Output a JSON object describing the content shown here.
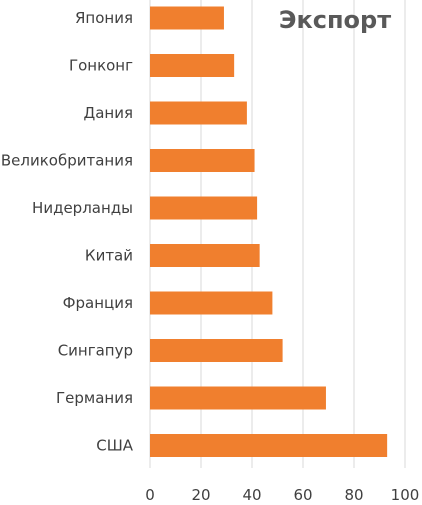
{
  "chart_data": {
    "type": "bar",
    "orientation": "horizontal",
    "title": "Экспорт",
    "categories": [
      "Япония",
      "Гонконг",
      "Дания",
      "Великобритания",
      "Нидерланды",
      "Китай",
      "Франция",
      "Сингапур",
      "Германия",
      "США"
    ],
    "values": [
      29,
      33,
      38,
      41,
      42,
      43,
      48,
      52,
      69,
      93
    ],
    "xlim": [
      0,
      100
    ],
    "xticks": [
      0,
      20,
      40,
      60,
      80,
      100
    ],
    "grid": true,
    "legend": "none",
    "bar_color": "#f07f2e"
  }
}
